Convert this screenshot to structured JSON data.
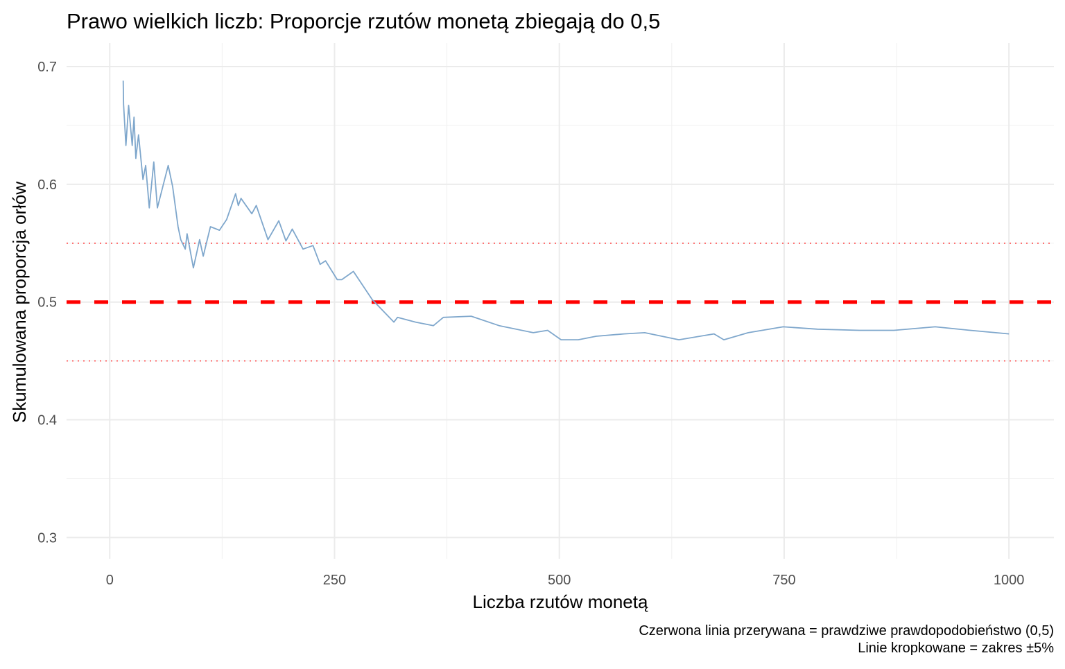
{
  "chart_data": {
    "type": "line",
    "title": "Prawo wielkich liczb: Proporcje rzutów monetą zbiegają do 0,5",
    "xlabel": "Liczba rzutów monetą",
    "ylabel": "Skumulowana proporcja orłów",
    "caption": [
      "Czerwona linia przerywana = prawdziwe prawdopodobieństwo (0,5)",
      "Linie kropkowane = zakres ±5%"
    ],
    "xlim": [
      -48,
      1050
    ],
    "ylim": [
      0.282,
      0.72
    ],
    "xticks": [
      0,
      250,
      500,
      750,
      1000
    ],
    "xtick_labels": [
      "0",
      "250",
      "500",
      "750",
      "1000"
    ],
    "yticks": [
      0.3,
      0.4,
      0.5,
      0.6,
      0.7
    ],
    "ytick_labels": [
      "0.3",
      "0.4",
      "0.5",
      "0.6",
      "0.7"
    ],
    "grid": true,
    "reference_lines": [
      {
        "y": 0.5,
        "style": "dashed",
        "color": "#ff0000"
      },
      {
        "y": 0.55,
        "style": "dotted",
        "color": "#ff0000"
      },
      {
        "y": 0.45,
        "style": "dotted",
        "color": "#ff0000"
      }
    ],
    "series": [
      {
        "name": "Skumulowana proporcja",
        "color": "#7fa7cc",
        "x": [
          15,
          15.4,
          18,
          21,
          25,
          27,
          29,
          32,
          37,
          40,
          44,
          49,
          53,
          59,
          65,
          70,
          76,
          79,
          84,
          86,
          93,
          100,
          104,
          112,
          122,
          130,
          140,
          143,
          146,
          158,
          163,
          176,
          188,
          196,
          203,
          215,
          226,
          234,
          240,
          253,
          258,
          271,
          292,
          316,
          320,
          340,
          360,
          371,
          402,
          433,
          471,
          487,
          502,
          521,
          541,
          572,
          595,
          633,
          672,
          683,
          710,
          749,
          787,
          834,
          872,
          918,
          957,
          1000
        ],
        "y": [
          0.688,
          0.668,
          0.633,
          0.667,
          0.633,
          0.657,
          0.622,
          0.642,
          0.604,
          0.616,
          0.58,
          0.619,
          0.58,
          0.598,
          0.616,
          0.598,
          0.564,
          0.553,
          0.545,
          0.558,
          0.529,
          0.553,
          0.539,
          0.564,
          0.561,
          0.57,
          0.592,
          0.582,
          0.588,
          0.575,
          0.582,
          0.553,
          0.569,
          0.552,
          0.562,
          0.545,
          0.548,
          0.532,
          0.535,
          0.519,
          0.519,
          0.526,
          0.502,
          0.483,
          0.487,
          0.483,
          0.48,
          0.487,
          0.488,
          0.48,
          0.474,
          0.476,
          0.468,
          0.468,
          0.471,
          0.473,
          0.474,
          0.468,
          0.473,
          0.468,
          0.474,
          0.479,
          0.477,
          0.476,
          0.476,
          0.479,
          0.476,
          0.473
        ]
      }
    ]
  }
}
